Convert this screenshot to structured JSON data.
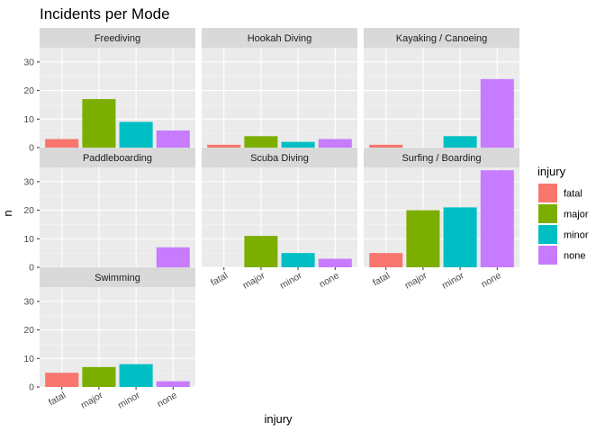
{
  "chart_data": {
    "type": "bar",
    "title": "Incidents per Mode",
    "xlabel": "injury",
    "ylabel": "n",
    "categories": [
      "fatal",
      "major",
      "minor",
      "none"
    ],
    "ylim": [
      0,
      35
    ],
    "yticks": [
      0,
      10,
      20,
      30
    ],
    "grid": true,
    "legend": {
      "title": "injury",
      "placement": "right"
    },
    "colors": {
      "fatal": "#F8766D",
      "major": "#7CAE00",
      "minor": "#00BFC4",
      "none": "#C77CFF"
    },
    "panels": [
      {
        "name": "Freediving",
        "values": [
          3,
          17,
          9,
          6
        ]
      },
      {
        "name": "Hookah Diving",
        "values": [
          1,
          4,
          2,
          3
        ]
      },
      {
        "name": "Kayaking / Canoeing",
        "values": [
          1,
          0,
          4,
          24
        ]
      },
      {
        "name": "Paddleboarding",
        "values": [
          0,
          0,
          0,
          7
        ]
      },
      {
        "name": "Scuba Diving",
        "values": [
          0,
          11,
          5,
          3
        ]
      },
      {
        "name": "Surfing / Boarding",
        "values": [
          5,
          20,
          21,
          34
        ]
      },
      {
        "name": "Swimming",
        "values": [
          5,
          7,
          8,
          2
        ]
      }
    ]
  }
}
